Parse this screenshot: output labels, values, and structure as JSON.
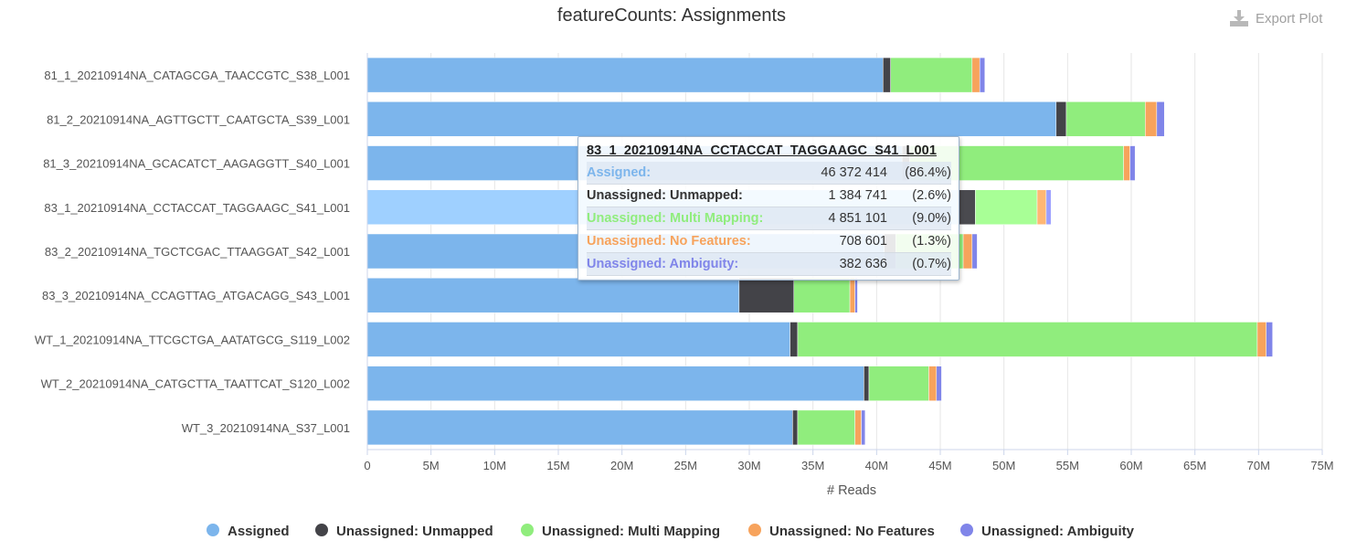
{
  "title": "featureCounts: Assignments",
  "export_label": "Export Plot",
  "export_icon": "download-icon",
  "chart_data": {
    "type": "bar",
    "orientation": "horizontal",
    "stacked": true,
    "title": "featureCounts: Assignments",
    "xlabel": "# Reads",
    "ylabel": "",
    "xlim": [
      0,
      75000000
    ],
    "x_ticks": [
      "0",
      "5M",
      "10M",
      "15M",
      "20M",
      "25M",
      "30M",
      "35M",
      "40M",
      "45M",
      "50M",
      "55M",
      "60M",
      "65M",
      "70M",
      "75M"
    ],
    "grid": true,
    "legend_position": "bottom",
    "categories": [
      "81_1_20210914NA_CATAGCGA_TAACCGTC_S38_L001",
      "81_2_20210914NA_AGTTGCTT_CAATGCTA_S39_L001",
      "81_3_20210914NA_GCACATCT_AAGAGGTT_S40_L001",
      "83_1_20210914NA_CCTACCAT_TAGGAAGC_S41_L001",
      "83_2_20210914NA_TGCTCGAC_TTAAGGAT_S42_L001",
      "83_3_20210914NA_CCAGTTAG_ATGACAGG_S43_L001",
      "WT_1_20210914NA_TTCGCTGA_AATATGCG_S119_L002",
      "WT_2_20210914NA_CATGCTTA_TAATTCAT_S120_L002",
      "WT_3_20210914NA_S37_L001"
    ],
    "series": [
      {
        "name": "Assigned",
        "color": "#7cb5ec",
        "values": [
          40500000,
          54100000,
          42000000,
          46372414,
          40600000,
          29200000,
          33200000,
          39000000,
          33400000
        ]
      },
      {
        "name": "Unassigned: Unmapped",
        "color": "#434348",
        "values": [
          600000,
          800000,
          600000,
          1384741,
          900000,
          4300000,
          600000,
          400000,
          400000
        ]
      },
      {
        "name": "Unassigned: Multi Mapping",
        "color": "#90ed7d",
        "values": [
          6400000,
          6200000,
          16800000,
          4851101,
          5300000,
          4400000,
          36100000,
          4700000,
          4500000
        ]
      },
      {
        "name": "Unassigned: No Features",
        "color": "#f7a35c",
        "values": [
          600000,
          900000,
          500000,
          708601,
          700000,
          400000,
          700000,
          600000,
          500000
        ]
      },
      {
        "name": "Unassigned: Ambiguity",
        "color": "#8085e9",
        "values": [
          400000,
          600000,
          400000,
          382636,
          400000,
          200000,
          500000,
          400000,
          300000
        ]
      }
    ],
    "highlighted_category": 3
  },
  "tooltip": {
    "title": "83_1_20210914NA_CCTACCAT_TAGGAAGC_S41_L001",
    "rows": [
      {
        "name": "Assigned:",
        "value": "46 372 414",
        "pct": "(86.4%)",
        "color": "#7cb5ec"
      },
      {
        "name": "Unassigned: Unmapped:",
        "value": "1 384 741",
        "pct": "(2.6%)",
        "color": "#333333"
      },
      {
        "name": "Unassigned: Multi Mapping:",
        "value": "4 851 101",
        "pct": "(9.0%)",
        "color": "#90ed7d"
      },
      {
        "name": "Unassigned: No Features:",
        "value": "708 601",
        "pct": "(1.3%)",
        "color": "#f7a35c"
      },
      {
        "name": "Unassigned: Ambiguity:",
        "value": "382 636",
        "pct": "(0.7%)",
        "color": "#8085e9"
      }
    ]
  }
}
